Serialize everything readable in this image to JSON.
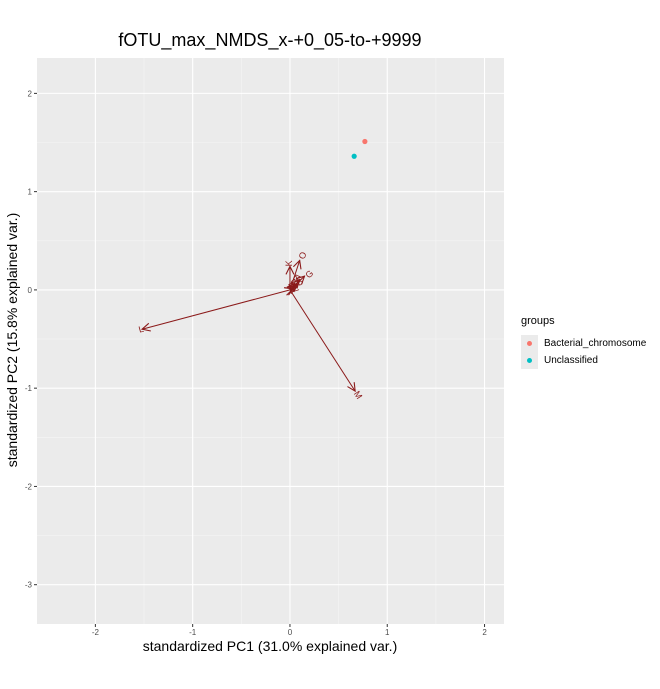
{
  "chart_data": {
    "type": "scatter",
    "title": "fOTU_max_NMDS_x-+0_05-to-+9999",
    "xlabel": "standardized PC1 (31.0% explained var.)",
    "ylabel": "standardized PC2 (15.8% explained var.)",
    "xlim": [
      -2.6,
      2.2
    ],
    "ylim": [
      -3.4,
      2.36
    ],
    "xticks": [
      -2,
      -1,
      0,
      1,
      2
    ],
    "yticks": [
      -3,
      -2,
      -1,
      0,
      1,
      2
    ],
    "grid": true,
    "legend": {
      "title": "groups",
      "position": "right"
    },
    "series": [
      {
        "name": "Bacterial_chromosome",
        "color": "#F8766D",
        "points": [
          [
            0.77,
            1.51
          ]
        ]
      },
      {
        "name": "Unclassified",
        "color": "#00BFC4",
        "points": [
          [
            0.66,
            1.36
          ]
        ]
      }
    ],
    "arrow_color": "#8B1A1A",
    "loadings": [
      {
        "label": "L",
        "x": -1.52,
        "y": -0.4,
        "lx": -1.53,
        "ly": -0.4
      },
      {
        "label": "M",
        "x": 0.67,
        "y": -1.03,
        "lx": 0.7,
        "ly": -1.07
      },
      {
        "label": "O",
        "x": 0.1,
        "y": 0.3,
        "lx": 0.13,
        "ly": 0.35
      },
      {
        "label": "K",
        "x": 0.0,
        "y": 0.24,
        "lx": -0.01,
        "ly": 0.27
      },
      {
        "label": "G",
        "x": 0.15,
        "y": 0.14,
        "lx": 0.2,
        "ly": 0.16
      },
      {
        "label": "A",
        "x": 0.1,
        "y": 0.1,
        "lx": 0.08,
        "ly": 0.13
      },
      {
        "label": "B",
        "x": 0.08,
        "y": 0.06,
        "lx": 0.1,
        "ly": 0.08
      },
      {
        "label": "C",
        "x": 0.06,
        "y": 0.04,
        "lx": 0.04,
        "ly": 0.07
      },
      {
        "label": "D",
        "x": 0.04,
        "y": 0.02,
        "lx": 0.02,
        "ly": 0.04
      },
      {
        "label": "E",
        "x": 0.03,
        "y": 0.01,
        "lx": 0.06,
        "ly": 0.02
      },
      {
        "label": "F",
        "x": 0.05,
        "y": 0.07,
        "lx": 0.07,
        "ly": 0.11
      }
    ]
  }
}
